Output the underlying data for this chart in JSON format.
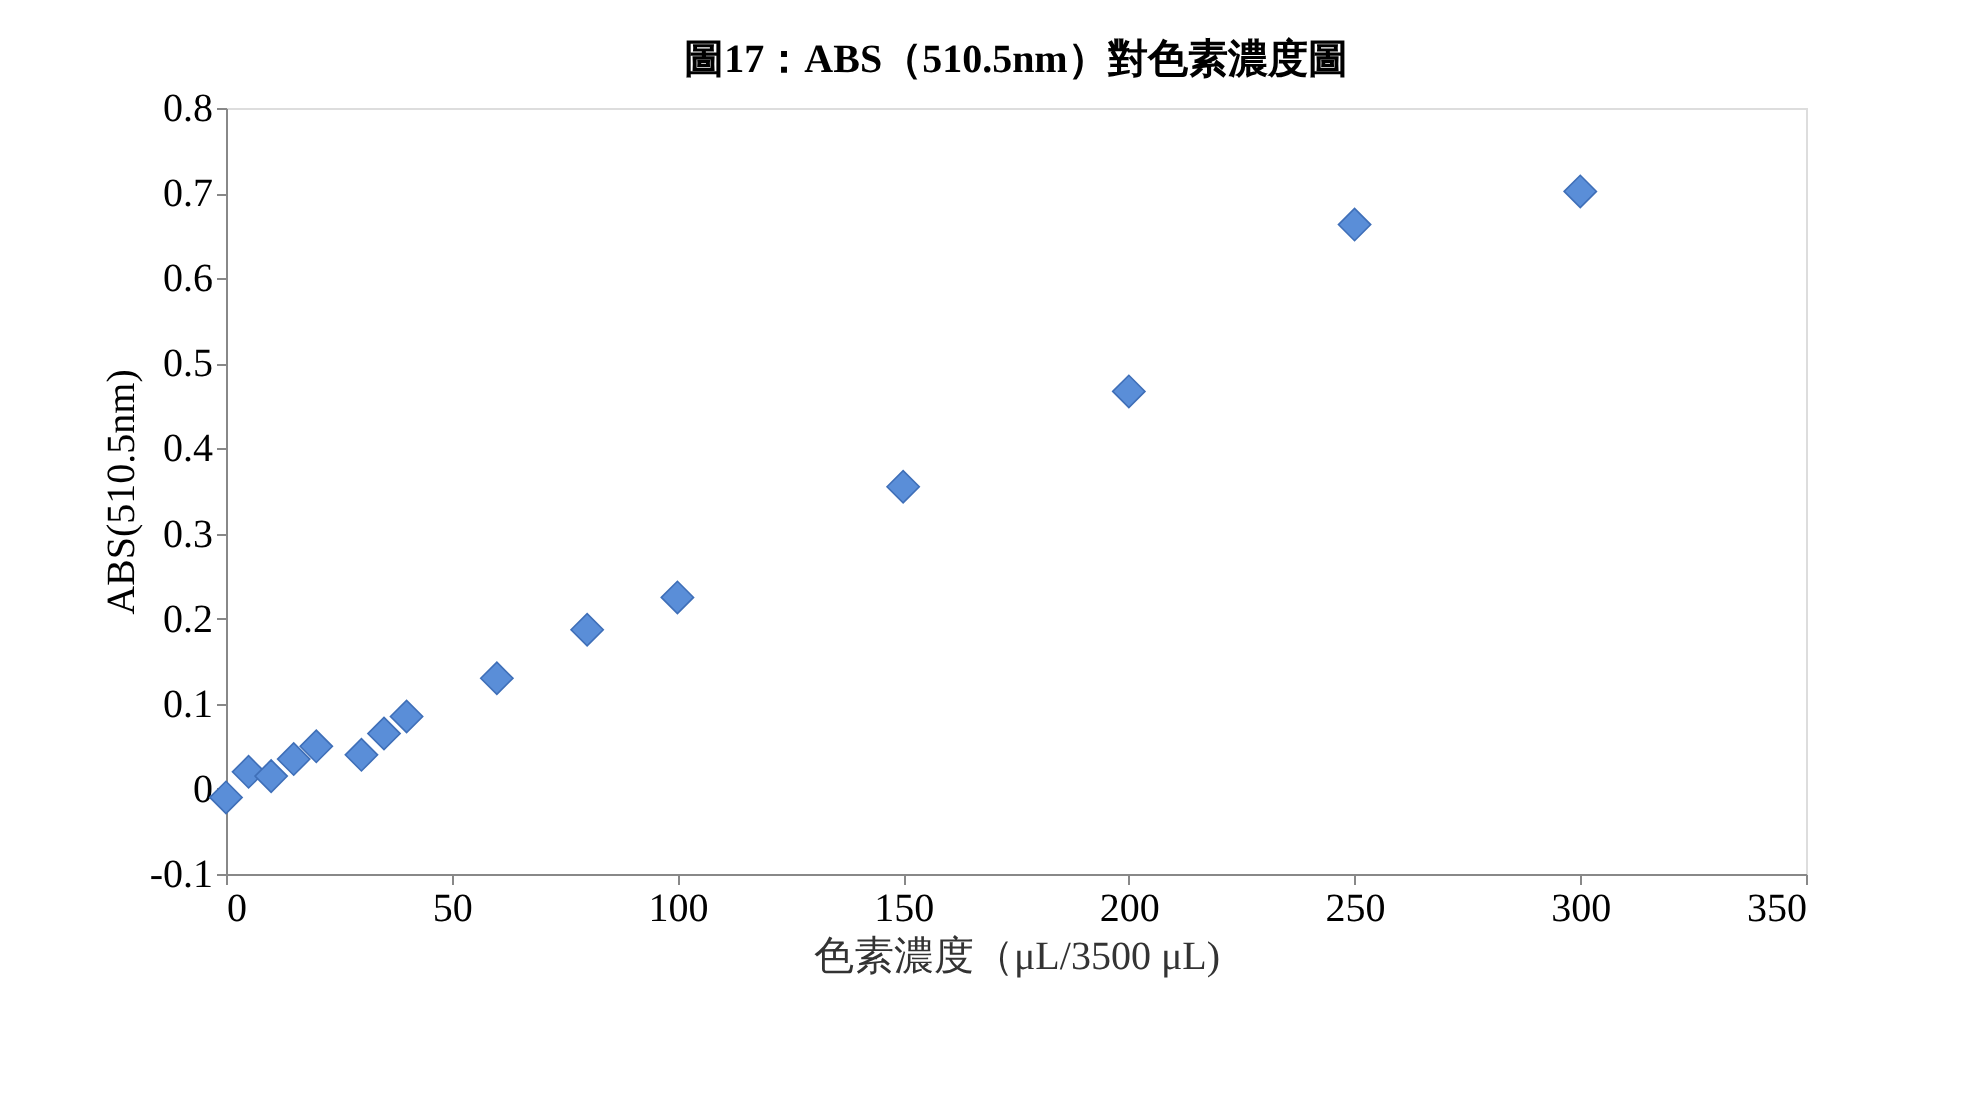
{
  "chart_data": {
    "type": "scatter",
    "title": "圖17：ABS（510.5nm）對色素濃度圖",
    "xlabel": "色素濃度（μL/3500 μL)",
    "ylabel": "ABS(510.5nm)",
    "x": [
      0,
      5,
      10,
      15,
      20,
      30,
      35,
      40,
      60,
      80,
      100,
      150,
      200,
      250,
      300
    ],
    "series": [
      {
        "color": "#5a8ed8",
        "values": [
          -0.01,
          0.02,
          0.015,
          0.035,
          0.05,
          0.04,
          0.065,
          0.085,
          0.13,
          0.187,
          0.225,
          0.355,
          0.467,
          0.663,
          0.702
        ]
      }
    ],
    "xlim": [
      0,
      350
    ],
    "xticks": [
      0,
      50,
      100,
      150,
      200,
      250,
      300,
      350
    ],
    "ylim": [
      -0.1,
      0.8
    ],
    "yticks": [
      -0.1,
      0,
      0.1,
      0.2,
      0.3,
      0.4,
      0.5,
      0.6,
      0.7,
      0.8
    ],
    "grid": false,
    "marker": "diamond"
  }
}
